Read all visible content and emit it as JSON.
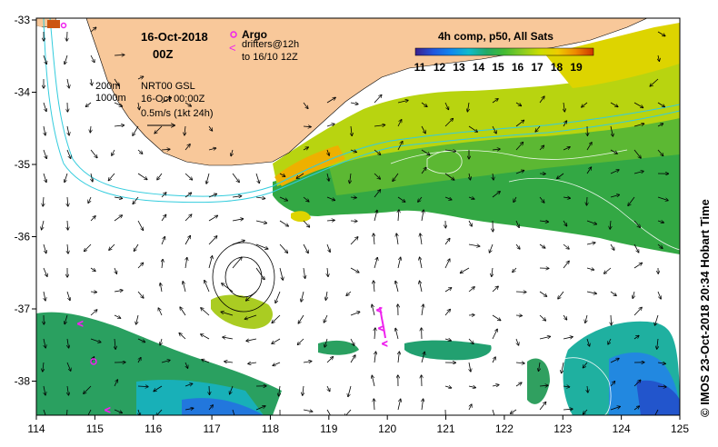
{
  "map": {
    "date": "16-Oct-2018",
    "time": "00Z",
    "composite_title": "4h comp, p50, All Sats",
    "colorbar_ticks": [
      "11",
      "12",
      "13",
      "14",
      "15",
      "16",
      "17",
      "18",
      "19"
    ],
    "legend": {
      "argo_label": "Argo",
      "drifters_label": "drifters@12h",
      "drifters_period": "to 16/10 12Z",
      "contour_200": "200m",
      "contour_1000": "1000m",
      "product": "NRT00 GSL",
      "product_time": "16-Oct 00:00Z",
      "scale_label": "0.5m/s (1kt 24h)"
    },
    "x_ticks": [
      "114",
      "115",
      "116",
      "117",
      "118",
      "119",
      "120",
      "121",
      "122",
      "123",
      "124",
      "125"
    ],
    "y_ticks": [
      "-33",
      "-34",
      "-35",
      "-36",
      "-37",
      "-38"
    ],
    "credit": "© IMOS 23-Oct-2018 20:34 Hobart Time",
    "colors": {
      "land": "#f8c89a",
      "bathy_contour": "#33ccdd",
      "sst_contour": "#ffffff",
      "argo": "#ee22ee",
      "drifter": "#ee22ee",
      "axis": "#000000"
    },
    "colorbar_stops": [
      "#3a1f8c",
      "#2255dd",
      "#1188ee",
      "#11bbcc",
      "#22aa66",
      "#44bb33",
      "#88cc22",
      "#ccdd00",
      "#eecc00",
      "#ee8800",
      "#cc3300"
    ]
  }
}
